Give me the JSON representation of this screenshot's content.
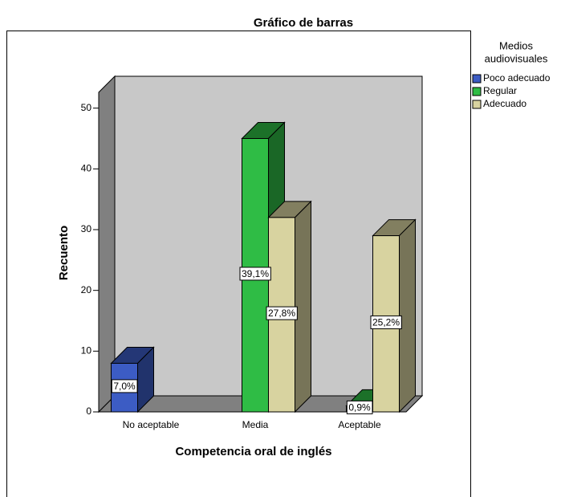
{
  "chart_data": {
    "type": "bar3d",
    "title": "Gráfico de barras",
    "x_label": "Competencia oral de inglés",
    "y_label": "Recuento",
    "legend_title": [
      "Medios",
      "audiovisuales"
    ],
    "categories": [
      "No aceptable",
      "Media",
      "Aceptable"
    ],
    "series": [
      {
        "name": "Poco adecuado",
        "color": "#3c5cc4",
        "values": [
          8,
          0,
          0
        ],
        "percent_labels": [
          "7,0%",
          null,
          null
        ]
      },
      {
        "name": "Regular",
        "color": "#2fbc45",
        "values": [
          0,
          45,
          1
        ],
        "percent_labels": [
          null,
          "39,1%",
          "0,9%"
        ]
      },
      {
        "name": "Adecuado",
        "color": "#d8d3a0",
        "values": [
          0,
          32,
          29
        ],
        "percent_labels": [
          null,
          "27,8%",
          "25,2%"
        ]
      }
    ],
    "ylim": [
      0,
      52.6
    ],
    "yticks": [
      0,
      10,
      20,
      30,
      40,
      50
    ],
    "legend": "right"
  }
}
